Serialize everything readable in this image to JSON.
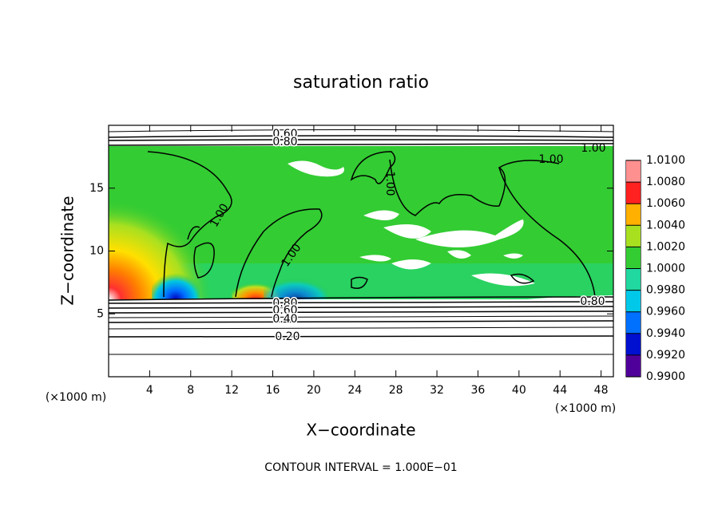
{
  "chart_data": {
    "type": "contour",
    "title": "saturation ratio",
    "x_label": "X−coordinate",
    "y_label": "Z−coordinate",
    "unit_labels": [
      "(×1000 m)",
      "(×1000 m)"
    ],
    "annotation": "CONTOUR INTERVAL = 1.000E−01",
    "xlim": [
      0,
      49.2
    ],
    "xticks": [
      4,
      8,
      12,
      16,
      20,
      24,
      28,
      32,
      36,
      40,
      44,
      48
    ],
    "ylim": [
      0,
      20
    ],
    "yticks": [
      5,
      10,
      15
    ],
    "contour_labels": [
      "0.60",
      "0.80",
      "1.00",
      "1.00",
      "1.00",
      "1.00",
      "1.00",
      "0.80",
      "0.60",
      "0.40",
      "0.20",
      "0.80"
    ],
    "colorbar": {
      "lim": [
        0.99,
        1.01
      ],
      "ticks": [
        {
          "value": 0.99,
          "label": "0.9900"
        },
        {
          "value": 0.992,
          "label": "0.9920"
        },
        {
          "value": 0.994,
          "label": "0.9940"
        },
        {
          "value": 0.996,
          "label": "0.9960"
        },
        {
          "value": 0.998,
          "label": "0.9980"
        },
        {
          "value": 1.0,
          "label": "1.0000"
        },
        {
          "value": 1.002,
          "label": "1.0020"
        },
        {
          "value": 1.004,
          "label": "1.0040"
        },
        {
          "value": 1.006,
          "label": "1.0060"
        },
        {
          "value": 1.008,
          "label": "1.0080"
        },
        {
          "value": 1.01,
          "label": "1.0100"
        }
      ],
      "colors": [
        "#50009a",
        "#0010d0",
        "#0070ff",
        "#00c8e8",
        "#20d8a0",
        "#33cc33",
        "#a8e020",
        "#ffb000",
        "#ff2020",
        "#ff9090"
      ]
    }
  }
}
